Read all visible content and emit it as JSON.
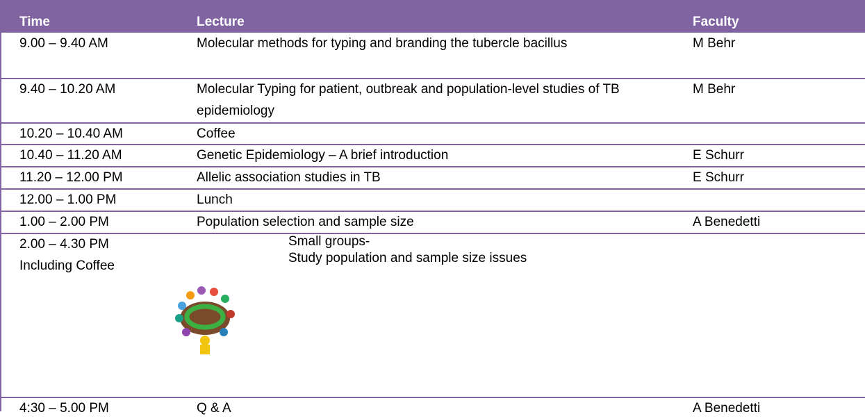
{
  "table": {
    "header": {
      "time": "Time",
      "lecture": "Lecture",
      "faculty": "Faculty"
    },
    "rows": [
      {
        "time": "9.00 – 9.40 AM",
        "lecture": "Molecular methods for typing and branding the tubercle bacillus",
        "faculty": "M Behr"
      },
      {
        "time": "9.40 – 10.20 AM",
        "lecture": "Molecular Typing for patient, outbreak and population-level studies of TB epidemiology",
        "faculty": "M Behr"
      },
      {
        "time": "10.20 – 10.40 AM",
        "lecture": "Coffee"
      },
      {
        "time": "10.40 – 11.20 AM",
        "lecture": "Genetic Epidemiology – A brief introduction",
        "faculty": "E Schurr"
      },
      {
        "time": "11.20 – 12.00 PM",
        "lecture": "Allelic association studies in TB",
        "faculty": "E Schurr"
      },
      {
        "time": "12.00 – 1.00 PM",
        "lecture": "Lunch"
      },
      {
        "time": "1.00 – 2.00 PM",
        "lecture": "Population selection and sample size",
        "faculty": "A Benedetti"
      },
      {
        "time": "2.00 – 4.30 PM",
        "time_note": "Including Coffee",
        "lecture": "Small groups-",
        "lecture_note": "Study population and sample size issues"
      },
      {
        "time": "4:30 – 5.00 PM",
        "lecture": "Q & A",
        "faculty": "A Benedetti"
      }
    ]
  }
}
